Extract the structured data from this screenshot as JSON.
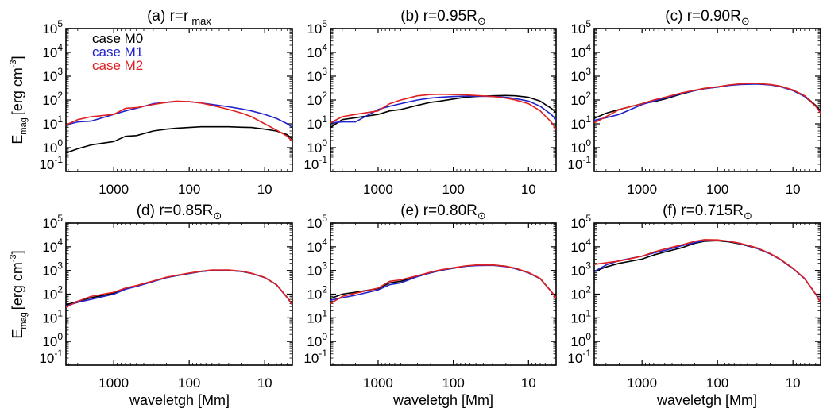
{
  "figure": {
    "ylabel_main": "E",
    "ylabel_sub": "mag",
    "ylabel_unit": "[erg cm",
    "ylabel_unit_sup": "-3",
    "ylabel_unit_close": "]",
    "xlabel": "waveletgh [Mm]"
  },
  "chart_data": [
    {
      "type": "line",
      "panel": "a",
      "title_prefix": "(a) r=r",
      "title_sub": "max",
      "title": "(a) r=r max",
      "xlabel": "",
      "ylabel": "E_mag [erg cm^-3]",
      "xscale": "log",
      "yscale": "log",
      "xlim": [
        4300,
        4.3
      ],
      "ylim": [
        0.1,
        100000
      ],
      "xticks": [
        "1000",
        "100",
        "10"
      ],
      "yticks": [
        "10^5",
        "10^4",
        "10^3",
        "10^2",
        "10^1",
        "10^0",
        "10^-1"
      ],
      "legend": {
        "placement": "top-left",
        "entries": [
          {
            "label": "case M0",
            "color": "#000000"
          },
          {
            "label": "case M1",
            "color": "#2222cc"
          },
          {
            "label": "case M2",
            "color": "#e02020"
          }
        ]
      },
      "x": [
        4300,
        3000,
        2000,
        1000,
        700,
        500,
        300,
        200,
        150,
        100,
        70,
        50,
        30,
        20,
        15,
        10,
        7,
        5,
        4.3
      ],
      "series": [
        {
          "name": "case M0",
          "color": "#000000",
          "values": [
            0.6,
            0.9,
            1.3,
            1.8,
            3.0,
            3.2,
            5.0,
            6.0,
            6.5,
            7.0,
            7.5,
            7.5,
            7.5,
            7.2,
            7.0,
            6.0,
            5.0,
            3.5,
            2.2
          ]
        },
        {
          "name": "case M1",
          "color": "#2222cc",
          "values": [
            9,
            12,
            13,
            25,
            35,
            45,
            70,
            80,
            85,
            85,
            75,
            65,
            52,
            42,
            35,
            25,
            17,
            10,
            7
          ]
        },
        {
          "name": "case M2",
          "color": "#e02020",
          "values": [
            9,
            15,
            20,
            25,
            45,
            48,
            65,
            80,
            90,
            85,
            75,
            60,
            40,
            28,
            20,
            10,
            5.5,
            3,
            1.8
          ]
        }
      ]
    },
    {
      "type": "line",
      "panel": "b",
      "title_prefix": "(b) r=0.95R",
      "title_sub": "⊙",
      "title": "(b) r=0.95R⊙",
      "xscale": "log",
      "yscale": "log",
      "xlim": [
        4300,
        4.3
      ],
      "ylim": [
        0.1,
        100000
      ],
      "xticks": [
        "1000",
        "100",
        "10"
      ],
      "yticks": [
        "10^5",
        "10^4",
        "10^3",
        "10^2",
        "10^1",
        "10^0",
        "10^-1"
      ],
      "x": [
        4300,
        3000,
        2000,
        1000,
        700,
        500,
        300,
        200,
        150,
        100,
        70,
        50,
        30,
        20,
        15,
        10,
        7,
        5,
        4.3
      ],
      "series": [
        {
          "name": "case M0",
          "color": "#000000",
          "values": [
            7,
            15,
            18,
            25,
            35,
            40,
            60,
            80,
            90,
            110,
            130,
            140,
            150,
            155,
            150,
            130,
            90,
            45,
            30
          ]
        },
        {
          "name": "case M1",
          "color": "#2222cc",
          "values": [
            11,
            12,
            12,
            40,
            55,
            70,
            100,
            120,
            130,
            140,
            145,
            145,
            140,
            130,
            115,
            90,
            55,
            25,
            15
          ]
        },
        {
          "name": "case M2",
          "color": "#e02020",
          "values": [
            11,
            20,
            25,
            35,
            70,
            100,
            150,
            170,
            175,
            170,
            165,
            155,
            140,
            120,
            100,
            70,
            35,
            12,
            6
          ]
        }
      ]
    },
    {
      "type": "line",
      "panel": "c",
      "title_prefix": "(c) r=0.90R",
      "title_sub": "⊙",
      "title": "(c) r=0.90R⊙",
      "xscale": "log",
      "yscale": "log",
      "xlim": [
        4300,
        4.3
      ],
      "ylim": [
        0.1,
        100000
      ],
      "xticks": [
        "1000",
        "100",
        "10"
      ],
      "yticks": [
        "10^5",
        "10^4",
        "10^3",
        "10^2",
        "10^1",
        "10^0",
        "10^-1"
      ],
      "x": [
        4300,
        3000,
        2000,
        1000,
        700,
        500,
        300,
        200,
        150,
        100,
        70,
        50,
        30,
        20,
        15,
        10,
        7,
        5,
        4.3
      ],
      "series": [
        {
          "name": "case M0",
          "color": "#000000",
          "values": [
            17,
            28,
            40,
            70,
            85,
            110,
            180,
            250,
            300,
            350,
            420,
            460,
            480,
            440,
            380,
            260,
            150,
            60,
            35
          ]
        },
        {
          "name": "case M1",
          "color": "#2222cc",
          "values": [
            14,
            18,
            25,
            65,
            90,
            120,
            190,
            250,
            300,
            350,
            410,
            450,
            470,
            430,
            370,
            250,
            140,
            55,
            30
          ]
        },
        {
          "name": "case M2",
          "color": "#e02020",
          "values": [
            11,
            20,
            40,
            70,
            100,
            130,
            200,
            260,
            310,
            360,
            430,
            480,
            500,
            450,
            390,
            265,
            150,
            55,
            28
          ]
        }
      ]
    },
    {
      "type": "line",
      "panel": "d",
      "title_prefix": "(d) r=0.85R",
      "title_sub": "⊙",
      "title": "(d) r=0.85R⊙",
      "xlabel": "waveletgh [Mm]",
      "xscale": "log",
      "yscale": "log",
      "xlim": [
        4300,
        4.3
      ],
      "ylim": [
        0.1,
        100000
      ],
      "xticks": [
        "1000",
        "100",
        "10"
      ],
      "yticks": [
        "10^5",
        "10^4",
        "10^3",
        "10^2",
        "10^1",
        "10^0",
        "10^-1"
      ],
      "x": [
        4300,
        3000,
        2000,
        1000,
        700,
        500,
        300,
        200,
        150,
        100,
        70,
        50,
        30,
        20,
        15,
        10,
        7,
        5,
        4.3
      ],
      "series": [
        {
          "name": "case M0",
          "color": "#000000",
          "values": [
            35,
            50,
            70,
            110,
            170,
            220,
            350,
            500,
            600,
            750,
            900,
            1000,
            1000,
            900,
            750,
            500,
            250,
            70,
            35
          ]
        },
        {
          "name": "case M1",
          "color": "#2222cc",
          "values": [
            32,
            45,
            60,
            100,
            160,
            210,
            340,
            500,
            600,
            750,
            900,
            1000,
            1000,
            900,
            750,
            500,
            250,
            70,
            35
          ]
        },
        {
          "name": "case M2",
          "color": "#e02020",
          "values": [
            28,
            50,
            80,
            120,
            180,
            230,
            360,
            520,
            620,
            780,
            920,
            1050,
            1050,
            920,
            770,
            510,
            255,
            72,
            35
          ]
        }
      ]
    },
    {
      "type": "line",
      "panel": "e",
      "title_prefix": "(e) r=0.80R",
      "title_sub": "⊙",
      "title": "(e) r=0.80R⊙",
      "xlabel": "waveletgh [Mm]",
      "xscale": "log",
      "yscale": "log",
      "xlim": [
        4300,
        4.3
      ],
      "ylim": [
        0.1,
        100000
      ],
      "xticks": [
        "1000",
        "100",
        "10"
      ],
      "yticks": [
        "10^5",
        "10^4",
        "10^3",
        "10^2",
        "10^1",
        "10^0",
        "10^-1"
      ],
      "x": [
        4300,
        3000,
        2000,
        1000,
        700,
        500,
        300,
        200,
        150,
        100,
        70,
        50,
        30,
        20,
        15,
        10,
        7,
        5,
        4.3
      ],
      "series": [
        {
          "name": "case M0",
          "color": "#000000",
          "values": [
            65,
            100,
            120,
            170,
            300,
            350,
            550,
            800,
            1000,
            1250,
            1500,
            1650,
            1700,
            1500,
            1200,
            800,
            450,
            130,
            70
          ]
        },
        {
          "name": "case M1",
          "color": "#2222cc",
          "values": [
            55,
            70,
            90,
            150,
            250,
            300,
            550,
            800,
            1000,
            1250,
            1500,
            1600,
            1650,
            1450,
            1200,
            800,
            450,
            130,
            70
          ]
        },
        {
          "name": "case M2",
          "color": "#e02020",
          "values": [
            40,
            80,
            110,
            180,
            350,
            400,
            600,
            850,
            1050,
            1300,
            1550,
            1700,
            1700,
            1500,
            1250,
            820,
            460,
            130,
            70
          ]
        }
      ]
    },
    {
      "type": "line",
      "panel": "f",
      "title_prefix": "(f) r=0.715R",
      "title_sub": "⊙",
      "title": "(f) r=0.715R⊙",
      "xlabel": "waveletgh [Mm]",
      "xscale": "log",
      "yscale": "log",
      "xlim": [
        4300,
        4.3
      ],
      "ylim": [
        0.1,
        100000
      ],
      "xticks": [
        "1000",
        "100",
        "10"
      ],
      "yticks": [
        "10^5",
        "10^4",
        "10^3",
        "10^2",
        "10^1",
        "10^0",
        "10^-1"
      ],
      "x": [
        4300,
        3000,
        2000,
        1000,
        700,
        500,
        300,
        200,
        150,
        100,
        70,
        50,
        30,
        20,
        15,
        10,
        7,
        5,
        4.3
      ],
      "series": [
        {
          "name": "case M0",
          "color": "#000000",
          "values": [
            900,
            1400,
            2000,
            3000,
            4500,
            6000,
            9000,
            14000,
            17000,
            18000,
            16000,
            13000,
            8500,
            5000,
            3000,
            1200,
            450,
            100,
            45
          ]
        },
        {
          "name": "case M1",
          "color": "#2222cc",
          "values": [
            900,
            1700,
            2600,
            4000,
            5500,
            7000,
            11000,
            15000,
            18000,
            19000,
            17000,
            13500,
            8500,
            5000,
            3000,
            1200,
            450,
            100,
            45
          ]
        },
        {
          "name": "case M2",
          "color": "#e02020",
          "values": [
            1800,
            2100,
            2500,
            4000,
            6000,
            8000,
            12000,
            17000,
            20000,
            19500,
            17000,
            14000,
            9000,
            5200,
            3100,
            1250,
            460,
            100,
            45
          ]
        }
      ]
    }
  ]
}
